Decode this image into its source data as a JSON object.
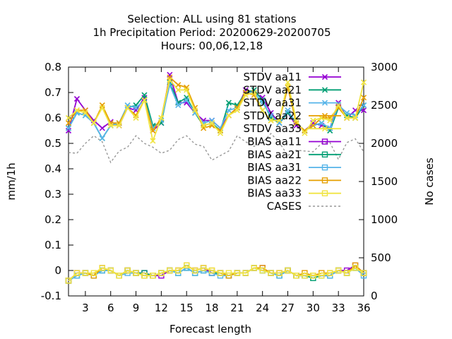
{
  "chart_data": {
    "type": "line",
    "title": [
      "Selection: ALL using    81 stations",
      "1h Precipitation   Period: 20200629-20200705",
      "Hours:  00,06,12,18"
    ],
    "xlabel": "Forecast length",
    "ylabel": "mm/1h",
    "y2label": "No cases",
    "xlim": [
      1,
      36
    ],
    "ylim": [
      -0.1,
      0.8
    ],
    "y2lim": [
      0,
      3000
    ],
    "xticks": [
      3,
      6,
      9,
      12,
      15,
      18,
      21,
      24,
      27,
      30,
      33,
      36
    ],
    "yticks": [
      -0.1,
      0,
      0.1,
      0.2,
      0.3,
      0.4,
      0.5,
      0.6,
      0.7,
      0.8
    ],
    "yticklabels": [
      "-0.1",
      "0",
      "0.1",
      "0.2",
      "0.3",
      "0.4",
      "0.5",
      "0.6",
      "0.7",
      "0.8"
    ],
    "y2ticks": [
      0,
      500,
      1000,
      1500,
      2000,
      2500,
      3000
    ],
    "legend_position": "top-right",
    "x": [
      1,
      2,
      3,
      4,
      5,
      6,
      7,
      8,
      9,
      10,
      11,
      12,
      13,
      14,
      15,
      16,
      17,
      18,
      19,
      20,
      21,
      22,
      23,
      24,
      25,
      26,
      27,
      28,
      29,
      30,
      31,
      32,
      33,
      34,
      35,
      36
    ],
    "series": [
      {
        "name": "STDV aa11",
        "axis": "y",
        "color": "#9400d3",
        "marker": "x",
        "values": [
          0.55,
          0.675,
          0.63,
          0.59,
          0.56,
          0.585,
          0.57,
          0.64,
          0.63,
          0.68,
          0.55,
          0.58,
          0.77,
          0.66,
          0.66,
          0.62,
          0.59,
          0.59,
          0.56,
          0.61,
          0.64,
          0.71,
          0.7,
          0.68,
          0.62,
          0.58,
          0.62,
          0.57,
          0.55,
          0.58,
          0.57,
          0.56,
          0.66,
          0.6,
          0.63,
          0.63
        ]
      },
      {
        "name": "STDV aa21",
        "axis": "y",
        "color": "#009e73",
        "marker": "x",
        "values": [
          0.56,
          0.62,
          0.61,
          0.58,
          0.52,
          0.57,
          0.58,
          0.64,
          0.65,
          0.69,
          0.57,
          0.58,
          0.74,
          0.66,
          0.68,
          0.62,
          0.57,
          0.58,
          0.55,
          0.66,
          0.65,
          0.7,
          0.71,
          0.67,
          0.6,
          0.58,
          0.62,
          0.58,
          0.55,
          0.57,
          0.58,
          0.55,
          0.64,
          0.61,
          0.6,
          0.65
        ]
      },
      {
        "name": "STDV aa31",
        "axis": "y",
        "color": "#56b4e9",
        "marker": "x",
        "values": [
          0.56,
          0.62,
          0.61,
          0.58,
          0.52,
          0.57,
          0.58,
          0.65,
          0.64,
          0.67,
          0.56,
          0.59,
          0.73,
          0.65,
          0.67,
          0.62,
          0.58,
          0.59,
          0.56,
          0.63,
          0.64,
          0.7,
          0.7,
          0.66,
          0.61,
          0.58,
          0.63,
          0.58,
          0.55,
          0.57,
          0.58,
          0.56,
          0.65,
          0.62,
          0.61,
          0.65
        ]
      },
      {
        "name": "STDV aa22",
        "axis": "y",
        "color": "#e69f00",
        "marker": "x",
        "values": [
          0.58,
          0.63,
          0.63,
          0.58,
          0.65,
          0.58,
          0.58,
          0.64,
          0.61,
          0.67,
          0.55,
          0.6,
          0.76,
          0.73,
          0.72,
          0.64,
          0.56,
          0.57,
          0.55,
          0.61,
          0.64,
          0.7,
          0.69,
          0.63,
          0.59,
          0.59,
          0.72,
          0.58,
          0.55,
          0.57,
          0.6,
          0.6,
          0.64,
          0.6,
          0.6,
          0.68
        ]
      },
      {
        "name": "STDV aa33",
        "axis": "y",
        "color": "#f0e442",
        "marker": "x",
        "values": [
          0.6,
          0.63,
          0.62,
          0.58,
          0.64,
          0.57,
          0.57,
          0.64,
          0.6,
          0.67,
          0.51,
          0.6,
          0.75,
          0.71,
          0.71,
          0.63,
          0.57,
          0.58,
          0.54,
          0.61,
          0.63,
          0.69,
          0.7,
          0.63,
          0.59,
          0.59,
          0.74,
          0.59,
          0.54,
          0.59,
          0.6,
          0.59,
          0.65,
          0.6,
          0.6,
          0.74
        ]
      },
      {
        "name": "BIAS aa11",
        "axis": "y",
        "color": "#9400d3",
        "marker": "square",
        "values": [
          -0.04,
          -0.01,
          -0.01,
          -0.02,
          0.01,
          0.0,
          -0.02,
          0.0,
          -0.01,
          -0.01,
          -0.02,
          -0.02,
          0.0,
          0.0,
          0.02,
          0.0,
          0.01,
          -0.01,
          -0.01,
          -0.02,
          -0.01,
          -0.01,
          0.01,
          0.01,
          -0.01,
          -0.01,
          0.0,
          -0.02,
          -0.02,
          -0.02,
          -0.02,
          -0.02,
          0.0,
          0.0,
          0.02,
          -0.01
        ]
      },
      {
        "name": "BIAS aa21",
        "axis": "y",
        "color": "#009e73",
        "marker": "square",
        "values": [
          -0.04,
          -0.02,
          -0.01,
          -0.02,
          0.0,
          0.0,
          -0.02,
          0.0,
          -0.01,
          -0.01,
          -0.02,
          -0.01,
          0.0,
          -0.01,
          0.01,
          -0.01,
          0.0,
          -0.01,
          -0.01,
          -0.02,
          -0.01,
          -0.01,
          0.01,
          0.0,
          -0.01,
          -0.02,
          0.0,
          -0.02,
          -0.02,
          -0.03,
          -0.02,
          -0.02,
          0.0,
          -0.01,
          0.01,
          -0.01
        ]
      },
      {
        "name": "BIAS aa31",
        "axis": "y",
        "color": "#56b4e9",
        "marker": "square",
        "values": [
          -0.04,
          -0.02,
          -0.01,
          -0.02,
          0.0,
          0.0,
          -0.02,
          -0.01,
          -0.01,
          -0.02,
          -0.02,
          -0.01,
          0.0,
          -0.01,
          0.01,
          -0.01,
          0.0,
          -0.01,
          -0.02,
          -0.02,
          -0.01,
          -0.01,
          0.01,
          0.0,
          -0.01,
          -0.02,
          0.0,
          -0.02,
          -0.02,
          -0.02,
          -0.02,
          -0.02,
          0.0,
          -0.01,
          0.01,
          -0.02
        ]
      },
      {
        "name": "BIAS aa22",
        "axis": "y",
        "color": "#e69f00",
        "marker": "square",
        "values": [
          -0.04,
          -0.01,
          -0.01,
          -0.02,
          0.01,
          0.0,
          -0.02,
          0.0,
          -0.01,
          -0.02,
          -0.02,
          -0.01,
          0.0,
          0.0,
          0.02,
          0.0,
          0.01,
          0.0,
          -0.01,
          -0.02,
          -0.01,
          -0.01,
          0.01,
          0.01,
          -0.01,
          -0.01,
          0.0,
          -0.02,
          -0.01,
          -0.02,
          -0.01,
          -0.01,
          0.0,
          -0.01,
          0.02,
          -0.01
        ]
      },
      {
        "name": "BIAS aa33",
        "axis": "y",
        "color": "#f0e442",
        "marker": "square",
        "values": [
          -0.04,
          -0.01,
          -0.01,
          -0.01,
          0.01,
          0.0,
          -0.02,
          0.0,
          -0.01,
          -0.02,
          -0.02,
          -0.01,
          0.0,
          0.0,
          0.02,
          0.0,
          0.01,
          0.0,
          -0.01,
          -0.01,
          -0.01,
          -0.01,
          0.01,
          0.0,
          -0.01,
          -0.01,
          0.0,
          -0.02,
          -0.02,
          -0.02,
          -0.02,
          -0.01,
          0.0,
          -0.01,
          0.01,
          -0.01
        ]
      },
      {
        "name": "CASES",
        "axis": "y2",
        "color": "#999999",
        "marker": "none",
        "dashed": true,
        "values": [
          1880,
          1870,
          2000,
          2100,
          2020,
          1750,
          1900,
          1950,
          2100,
          2000,
          1950,
          1870,
          1910,
          2050,
          2100,
          1990,
          1960,
          1780,
          1840,
          1900,
          2100,
          2020,
          1960,
          2010,
          2130,
          2010,
          1840,
          1910,
          1900,
          1890,
          2000,
          2010,
          1790,
          2010,
          2060,
          1890
        ]
      }
    ]
  }
}
